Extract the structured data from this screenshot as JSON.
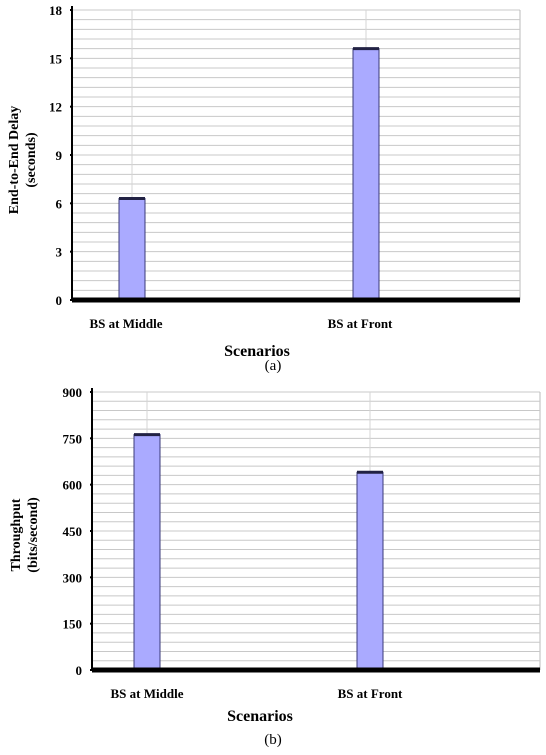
{
  "colors": {
    "bar_fill": "#aaaaff",
    "bar_stroke": "#3a3a7a",
    "grid": "#c8c8c8",
    "axis": "#000000"
  },
  "chart_data": [
    {
      "type": "bar",
      "categories": [
        "BS at Middle",
        "BS at Front"
      ],
      "values": [
        6.3,
        15.6
      ],
      "xlabel": "Scenarios",
      "ylabel_lines": [
        "End-to-End Delay",
        "(seconds)"
      ],
      "ylim": [
        0,
        18
      ],
      "yticks": [
        0,
        3,
        6,
        9,
        12,
        15,
        18
      ],
      "grid": true,
      "caption": "(a)"
    },
    {
      "type": "bar",
      "categories": [
        "BS at Middle",
        "BS at Front"
      ],
      "values": [
        762,
        640
      ],
      "xlabel": "Scenarios",
      "ylabel_lines": [
        "Throughput",
        "(bits/second)"
      ],
      "ylim": [
        0,
        900
      ],
      "yticks": [
        0,
        150,
        300,
        450,
        600,
        750,
        900
      ],
      "grid": true,
      "caption": "(b)"
    }
  ]
}
